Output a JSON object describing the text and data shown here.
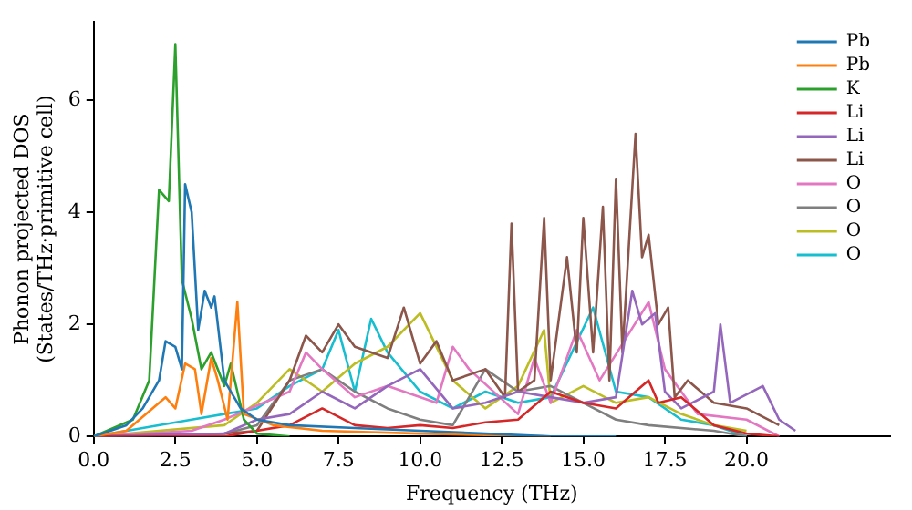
{
  "chart_data": {
    "type": "line",
    "xlabel": "Frequency (THz)",
    "ylabel": "Phonon projected DOS\n(States/THz·primitive cell)",
    "xlim": [
      0,
      24.4
    ],
    "ylim": [
      0,
      7.4
    ],
    "xticks": [
      {
        "value": 0,
        "label": "0.0"
      },
      {
        "value": 2.5,
        "label": "2.5"
      },
      {
        "value": 5,
        "label": "5.0"
      },
      {
        "value": 7.5,
        "label": "7.5"
      },
      {
        "value": 10,
        "label": "10.0"
      },
      {
        "value": 12.5,
        "label": "12.5"
      },
      {
        "value": 15,
        "label": "15.0"
      },
      {
        "value": 17.5,
        "label": "17.5"
      },
      {
        "value": 20,
        "label": "20.0"
      }
    ],
    "yticks": [
      0,
      2,
      4,
      6
    ],
    "grid": false,
    "legend": "top right",
    "marker": "none",
    "line_style": "solid",
    "series": [
      {
        "name": "Pb",
        "color": "#1f77b4",
        "x": [
          0,
          1,
          1.5,
          2,
          2.2,
          2.5,
          2.7,
          2.8,
          3,
          3.2,
          3.4,
          3.6,
          3.7,
          4,
          4.5,
          5,
          6,
          8,
          10,
          12,
          14,
          16
        ],
        "values": [
          0,
          0.2,
          0.5,
          1,
          1.7,
          1.6,
          1.2,
          4.5,
          4,
          1.9,
          2.6,
          2.3,
          2.5,
          1,
          0.5,
          0.3,
          0.2,
          0.15,
          0.1,
          0.05,
          0,
          0
        ]
      },
      {
        "name": "Pb",
        "color": "#ff7f0e",
        "x": [
          0,
          1,
          1.8,
          2.2,
          2.5,
          2.8,
          3.1,
          3.3,
          3.6,
          3.8,
          4.1,
          4.4,
          4.6,
          5.5,
          7,
          10,
          14
        ],
        "values": [
          0,
          0.1,
          0.5,
          0.7,
          0.5,
          1.3,
          1.2,
          0.4,
          1.4,
          1,
          0.3,
          2.4,
          0.4,
          0.2,
          0.1,
          0.05,
          0
        ]
      },
      {
        "name": "K",
        "color": "#2ca02c",
        "x": [
          0,
          1.2,
          1.7,
          2,
          2.3,
          2.5,
          2.7,
          3,
          3.3,
          3.6,
          4,
          4.2,
          4.6,
          5,
          6
        ],
        "values": [
          0,
          0.3,
          1,
          4.4,
          4.2,
          7,
          2.8,
          2.1,
          1.2,
          1.5,
          0.9,
          1.3,
          0.3,
          0.05,
          0
        ]
      },
      {
        "name": "Li",
        "color": "#d62728",
        "x": [
          0,
          4,
          5,
          6,
          7,
          8,
          9,
          10,
          11,
          12,
          13,
          14,
          15,
          16,
          16.8,
          17,
          17.3,
          18,
          19,
          20,
          21
        ],
        "values": [
          0,
          0,
          0.1,
          0.2,
          0.5,
          0.2,
          0.15,
          0.2,
          0.15,
          0.25,
          0.3,
          0.8,
          0.6,
          0.5,
          0.9,
          1,
          0.6,
          0.7,
          0.2,
          0.05,
          0
        ]
      },
      {
        "name": "Li",
        "color": "#9467bd",
        "x": [
          0,
          4,
          5,
          6,
          7,
          8,
          9,
          10,
          11,
          12,
          13,
          14,
          15,
          16,
          16.5,
          16.8,
          17.2,
          17.5,
          18,
          19,
          19.2,
          19.5,
          20.5,
          21,
          21.5
        ],
        "values": [
          0,
          0.05,
          0.3,
          0.4,
          0.8,
          0.5,
          0.9,
          1.2,
          0.5,
          0.6,
          0.8,
          0.7,
          0.6,
          0.7,
          2.6,
          2,
          2.2,
          0.8,
          0.5,
          0.8,
          2,
          0.6,
          0.9,
          0.3,
          0.1
        ]
      },
      {
        "name": "Li",
        "color": "#8c564b",
        "x": [
          0,
          4,
          5,
          6,
          6.5,
          7,
          7.5,
          8,
          9,
          9.5,
          10,
          10.5,
          11,
          12,
          12.6,
          12.8,
          13,
          13.5,
          13.8,
          14,
          14.5,
          14.8,
          15,
          15.3,
          15.6,
          15.8,
          16,
          16.2,
          16.6,
          16.8,
          17,
          17.3,
          17.6,
          17.8,
          18.2,
          18.6,
          19,
          20,
          21
        ],
        "values": [
          0,
          0.05,
          0.1,
          1,
          1.8,
          1.5,
          2,
          1.6,
          1.4,
          2.3,
          1.3,
          1.7,
          1,
          1.2,
          0.7,
          3.8,
          0.8,
          1,
          3.9,
          1,
          3.2,
          1.5,
          3.9,
          1.5,
          4.1,
          1,
          4.6,
          1.5,
          5.4,
          3.2,
          3.6,
          2,
          2.3,
          0.7,
          1,
          0.8,
          0.6,
          0.5,
          0.2
        ]
      },
      {
        "name": "O",
        "color": "#e377c2",
        "x": [
          0,
          3,
          4,
          6,
          6.5,
          7,
          8,
          9,
          10.5,
          11,
          11.5,
          13,
          13.5,
          14,
          14.8,
          15.5,
          17,
          17.5,
          18.5,
          20,
          21
        ],
        "values": [
          0,
          0.1,
          0.3,
          0.8,
          1.5,
          1.2,
          0.7,
          0.9,
          0.6,
          1.6,
          1.2,
          0.4,
          1.4,
          0.6,
          1.9,
          1,
          2.4,
          1.2,
          0.4,
          0.3,
          0
        ]
      },
      {
        "name": "O",
        "color": "#7f7f7f",
        "x": [
          0,
          4,
          5,
          6,
          7,
          8,
          9,
          10,
          11,
          12,
          13,
          14,
          15,
          16,
          17,
          19,
          20
        ],
        "values": [
          0,
          0.05,
          0.2,
          1,
          1.2,
          0.8,
          0.5,
          0.3,
          0.2,
          1.2,
          0.8,
          0.9,
          0.6,
          0.3,
          0.2,
          0.1,
          0
        ]
      },
      {
        "name": "O",
        "color": "#bcbd22",
        "x": [
          0,
          4,
          5,
          6,
          7,
          8,
          9,
          10,
          11,
          12,
          13,
          13.8,
          14,
          15,
          16,
          17,
          18,
          19,
          20
        ],
        "values": [
          0,
          0.2,
          0.6,
          1.2,
          0.8,
          1.3,
          1.6,
          2.2,
          1,
          0.5,
          0.9,
          1.9,
          0.6,
          0.9,
          0.6,
          0.7,
          0.4,
          0.2,
          0.1
        ]
      },
      {
        "name": "O",
        "color": "#17becf",
        "x": [
          0,
          3,
          5,
          6,
          7,
          7.5,
          8,
          8.5,
          9,
          10,
          11,
          12,
          13,
          14,
          15.3,
          16,
          17,
          18,
          19,
          20
        ],
        "values": [
          0,
          0.3,
          0.5,
          0.9,
          1.2,
          1.9,
          0.8,
          2.1,
          1.5,
          0.8,
          0.5,
          0.8,
          0.6,
          0.7,
          2.3,
          0.8,
          0.7,
          0.3,
          0.2,
          0
        ]
      }
    ]
  }
}
